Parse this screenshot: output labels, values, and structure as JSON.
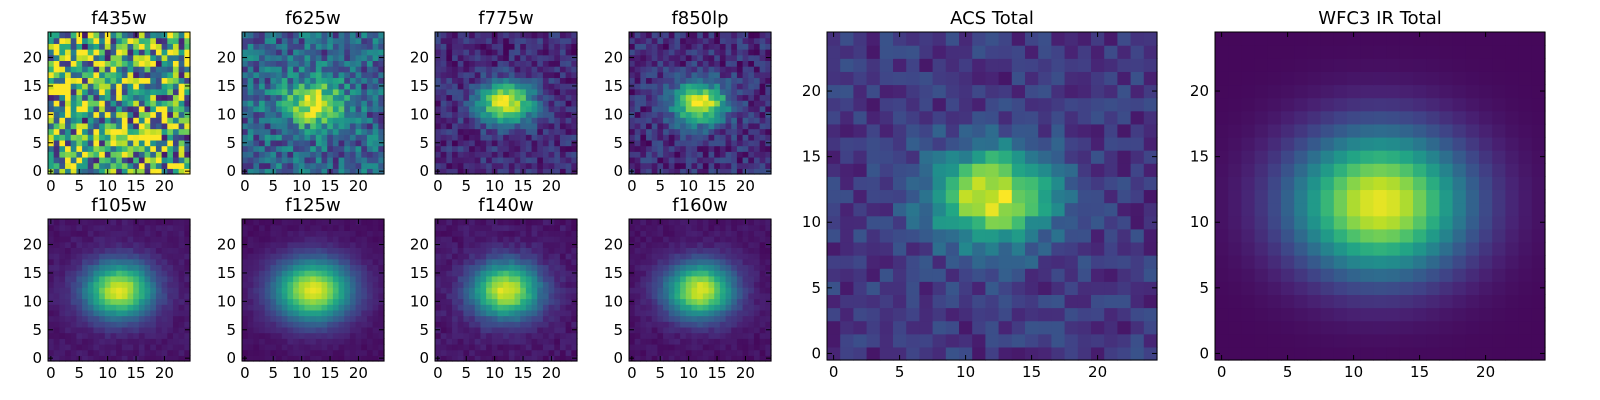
{
  "figure": {
    "colormap": "viridis",
    "image_size": [
      25,
      25
    ],
    "colors": {
      "background": "#ffffff",
      "axes": "#000000",
      "low": "#440154",
      "mid": "#21918c",
      "high": "#fde725"
    }
  },
  "chart_data": [
    {
      "type": "heatmap",
      "title": "f435w",
      "x_ticks": [
        0,
        5,
        10,
        15,
        20
      ],
      "y_ticks": [
        0,
        5,
        10,
        15,
        20
      ],
      "xlim": [
        -0.5,
        24.5
      ],
      "ylim": [
        -0.5,
        24.5
      ],
      "center": [
        12,
        12
      ],
      "sigma": [
        3.0,
        2.4
      ],
      "peak": 0.08,
      "noise": 0.55,
      "base": 0.62,
      "pattern": "pure noise, no visible source"
    },
    {
      "type": "heatmap",
      "title": "f625w",
      "x_ticks": [
        0,
        5,
        10,
        15,
        20
      ],
      "y_ticks": [
        0,
        5,
        10,
        15,
        20
      ],
      "xlim": [
        -0.5,
        24.5
      ],
      "ylim": [
        -0.5,
        24.5
      ],
      "center": [
        12,
        12
      ],
      "sigma": [
        3.6,
        2.8
      ],
      "peak": 0.62,
      "noise": 0.22,
      "base": 0.32,
      "pattern": "faint extended source centered near (12,12)"
    },
    {
      "type": "heatmap",
      "title": "f775w",
      "x_ticks": [
        0,
        5,
        10,
        15,
        20
      ],
      "y_ticks": [
        0,
        5,
        10,
        15,
        20
      ],
      "xlim": [
        -0.5,
        24.5
      ],
      "ylim": [
        -0.5,
        24.5
      ],
      "center": [
        12,
        12
      ],
      "sigma": [
        3.4,
        2.6
      ],
      "peak": 0.85,
      "noise": 0.12,
      "base": 0.12,
      "pattern": "compact source centered near (12,12)"
    },
    {
      "type": "heatmap",
      "title": "f850lp",
      "x_ticks": [
        0,
        5,
        10,
        15,
        20
      ],
      "y_ticks": [
        0,
        5,
        10,
        15,
        20
      ],
      "xlim": [
        -0.5,
        24.5
      ],
      "ylim": [
        -0.5,
        24.5
      ],
      "center": [
        12,
        12
      ],
      "sigma": [
        3.4,
        2.6
      ],
      "peak": 0.85,
      "noise": 0.13,
      "base": 0.13,
      "pattern": "compact source centered near (12,12)"
    },
    {
      "type": "heatmap",
      "title": "ACS Total",
      "x_ticks": [
        0,
        5,
        10,
        15,
        20
      ],
      "y_ticks": [
        0,
        5,
        10,
        15,
        20
      ],
      "xlim": [
        -0.5,
        24.5
      ],
      "ylim": [
        -0.5,
        24.5
      ],
      "center": [
        12,
        12
      ],
      "sigma": [
        3.3,
        2.6
      ],
      "peak": 0.82,
      "noise": 0.1,
      "base": 0.16,
      "pattern": "stacked ACS image, source centered near (12,12)"
    },
    {
      "type": "heatmap",
      "title": "WFC3 IR Total",
      "x_ticks": [
        0,
        5,
        10,
        15,
        20
      ],
      "y_ticks": [
        0,
        5,
        10,
        15,
        20
      ],
      "xlim": [
        -0.5,
        24.5
      ],
      "ylim": [
        -0.5,
        24.5
      ],
      "center": [
        12,
        11.5
      ],
      "sigma": [
        4.6,
        3.8
      ],
      "peak": 0.95,
      "noise": 0.0,
      "base": 0.02,
      "pattern": "smooth broad source centered near (12,12)"
    },
    {
      "type": "heatmap",
      "title": "f105w",
      "x_ticks": [
        0,
        5,
        10,
        15,
        20
      ],
      "y_ticks": [
        0,
        5,
        10,
        15,
        20
      ],
      "xlim": [
        -0.5,
        24.5
      ],
      "ylim": [
        -0.5,
        24.5
      ],
      "center": [
        12,
        12
      ],
      "sigma": [
        4.2,
        3.4
      ],
      "peak": 0.9,
      "noise": 0.03,
      "base": 0.06,
      "pattern": "smooth source centered near (12,12)"
    },
    {
      "type": "heatmap",
      "title": "f125w",
      "x_ticks": [
        0,
        5,
        10,
        15,
        20
      ],
      "y_ticks": [
        0,
        5,
        10,
        15,
        20
      ],
      "xlim": [
        -0.5,
        24.5
      ],
      "ylim": [
        -0.5,
        24.5
      ],
      "center": [
        12,
        12
      ],
      "sigma": [
        4.8,
        3.8
      ],
      "peak": 0.92,
      "noise": 0.02,
      "base": 0.04,
      "pattern": "smooth broad source centered near (12,12)"
    },
    {
      "type": "heatmap",
      "title": "f140w",
      "x_ticks": [
        0,
        5,
        10,
        15,
        20
      ],
      "y_ticks": [
        0,
        5,
        10,
        15,
        20
      ],
      "xlim": [
        -0.5,
        24.5
      ],
      "ylim": [
        -0.5,
        24.5
      ],
      "center": [
        12,
        12
      ],
      "sigma": [
        4.2,
        3.4
      ],
      "peak": 0.9,
      "noise": 0.04,
      "base": 0.06,
      "pattern": "smooth source centered near (12,12)"
    },
    {
      "type": "heatmap",
      "title": "f160w",
      "x_ticks": [
        0,
        5,
        10,
        15,
        20
      ],
      "y_ticks": [
        0,
        5,
        10,
        15,
        20
      ],
      "xlim": [
        -0.5,
        24.5
      ],
      "ylim": [
        -0.5,
        24.5
      ],
      "center": [
        12,
        12
      ],
      "sigma": [
        4.2,
        3.4
      ],
      "peak": 0.9,
      "noise": 0.03,
      "base": 0.05,
      "pattern": "smooth source centered near (12,12)"
    }
  ]
}
